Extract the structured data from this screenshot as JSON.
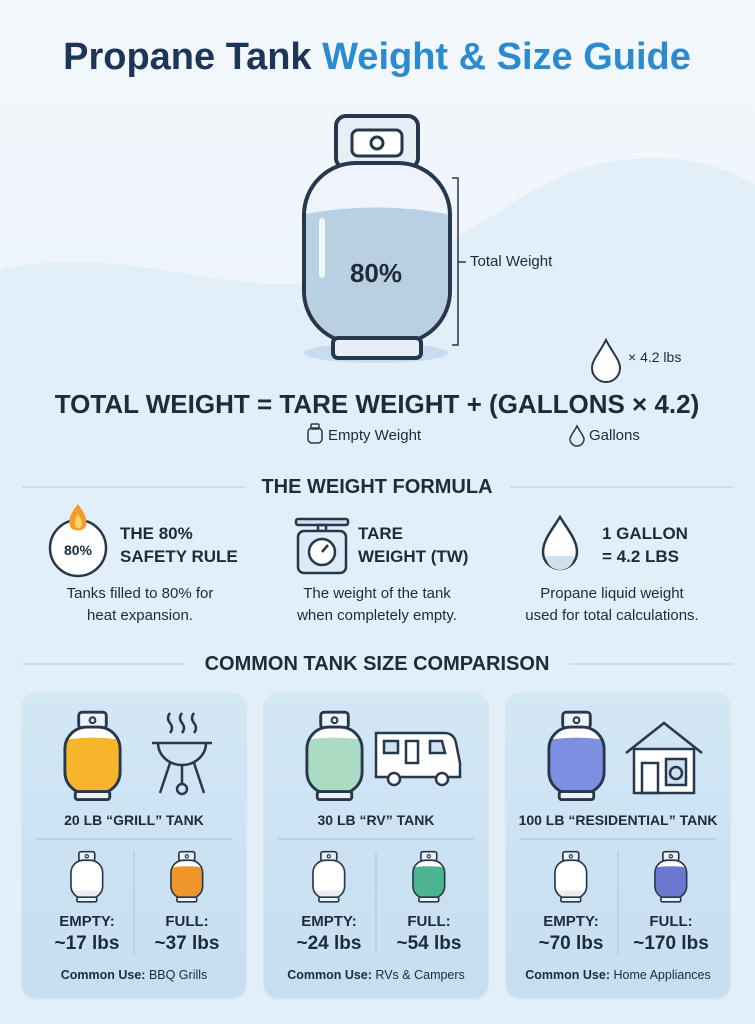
{
  "header": {
    "title_part1": "Propane Tank",
    "title_part2": "Weight & Size Guide"
  },
  "hero": {
    "fill_label": "80%",
    "total_weight_label": "Total Weight",
    "drop_label": "× 4.2 lbs",
    "formula": "TOTAL WEIGHT = TARE WEIGHT + (GALLONS × 4.2)",
    "empty_weight_note": "Empty Weight",
    "gallons_note": "Gallons"
  },
  "formula_section": {
    "heading": "THE WEIGHT FORMULA",
    "items": [
      {
        "badge": "80%",
        "title": [
          "THE 80%",
          "SAFETY RULE"
        ],
        "description": [
          "Tanks filled to 80% for",
          "heat expansion."
        ]
      },
      {
        "title": [
          "TARE",
          "WEIGHT (TW)"
        ],
        "description": [
          "The weight of the tank",
          "when completely empty."
        ]
      },
      {
        "title": [
          "1 GALLON",
          "= 4.2 LBS"
        ],
        "description": [
          "Propane liquid weight",
          "used for total calculations."
        ]
      }
    ]
  },
  "comparison": {
    "heading": "COMMON TANK SIZE COMPARISON",
    "cards": [
      {
        "name": "20 LB “GRILL” TANK",
        "empty_label": "EMPTY:",
        "empty_weight": "~17 lbs",
        "full_label": "FULL:",
        "full_weight": "~37 lbs",
        "use_label": "Common Use:",
        "use": "BBQ Grills"
      },
      {
        "name": "30 LB “RV” TANK",
        "empty_label": "EMPTY:",
        "empty_weight": "~24 lbs",
        "full_label": "FULL:",
        "full_weight": "~54 lbs",
        "use_label": "Common Use:",
        "use": "RVs & Campers"
      },
      {
        "name": "100 LB “RESIDENTIAL” TANK",
        "empty_label": "EMPTY:",
        "empty_weight": "~70 lbs",
        "full_label": "FULL:",
        "full_weight": "~170 lbs",
        "use_label": "Common Use:",
        "use": "Home Appliances"
      }
    ]
  }
}
